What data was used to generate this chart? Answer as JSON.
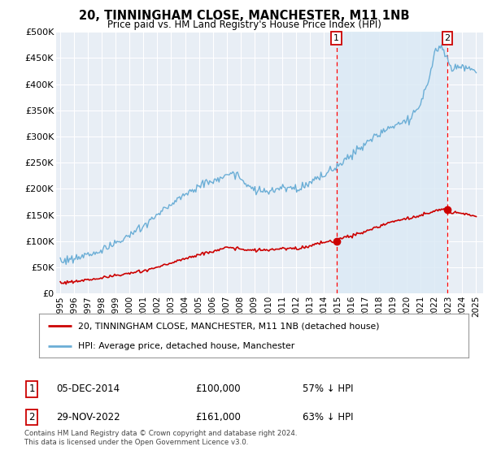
{
  "title": "20, TINNINGHAM CLOSE, MANCHESTER, M11 1NB",
  "subtitle": "Price paid vs. HM Land Registry's House Price Index (HPI)",
  "legend_line1": "20, TINNINGHAM CLOSE, MANCHESTER, M11 1NB (detached house)",
  "legend_line2": "HPI: Average price, detached house, Manchester",
  "footnote": "Contains HM Land Registry data © Crown copyright and database right 2024.\nThis data is licensed under the Open Government Licence v3.0.",
  "transaction1_date": "05-DEC-2014",
  "transaction1_price": "£100,000",
  "transaction1_pct": "57% ↓ HPI",
  "transaction2_date": "29-NOV-2022",
  "transaction2_price": "£161,000",
  "transaction2_pct": "63% ↓ HPI",
  "hpi_color": "#6baed6",
  "property_color": "#cc0000",
  "vline_color": "#ff0000",
  "highlight_color": "#dceaf5",
  "background_color": "#ffffff",
  "plot_bg_color": "#e8eef5",
  "grid_color": "#ffffff",
  "ylim": [
    0,
    500000
  ],
  "yticks": [
    0,
    50000,
    100000,
    150000,
    200000,
    250000,
    300000,
    350000,
    400000,
    450000,
    500000
  ],
  "ytick_labels": [
    "£0",
    "£50K",
    "£100K",
    "£150K",
    "£200K",
    "£250K",
    "£300K",
    "£350K",
    "£400K",
    "£450K",
    "£500K"
  ],
  "xlim_start": 1994.7,
  "xlim_end": 2025.5,
  "transaction1_x": 2014.92,
  "transaction2_x": 2022.91,
  "transaction1_y": 100000,
  "transaction2_y": 161000,
  "hpi_seed": 0,
  "prop_seed": 1
}
